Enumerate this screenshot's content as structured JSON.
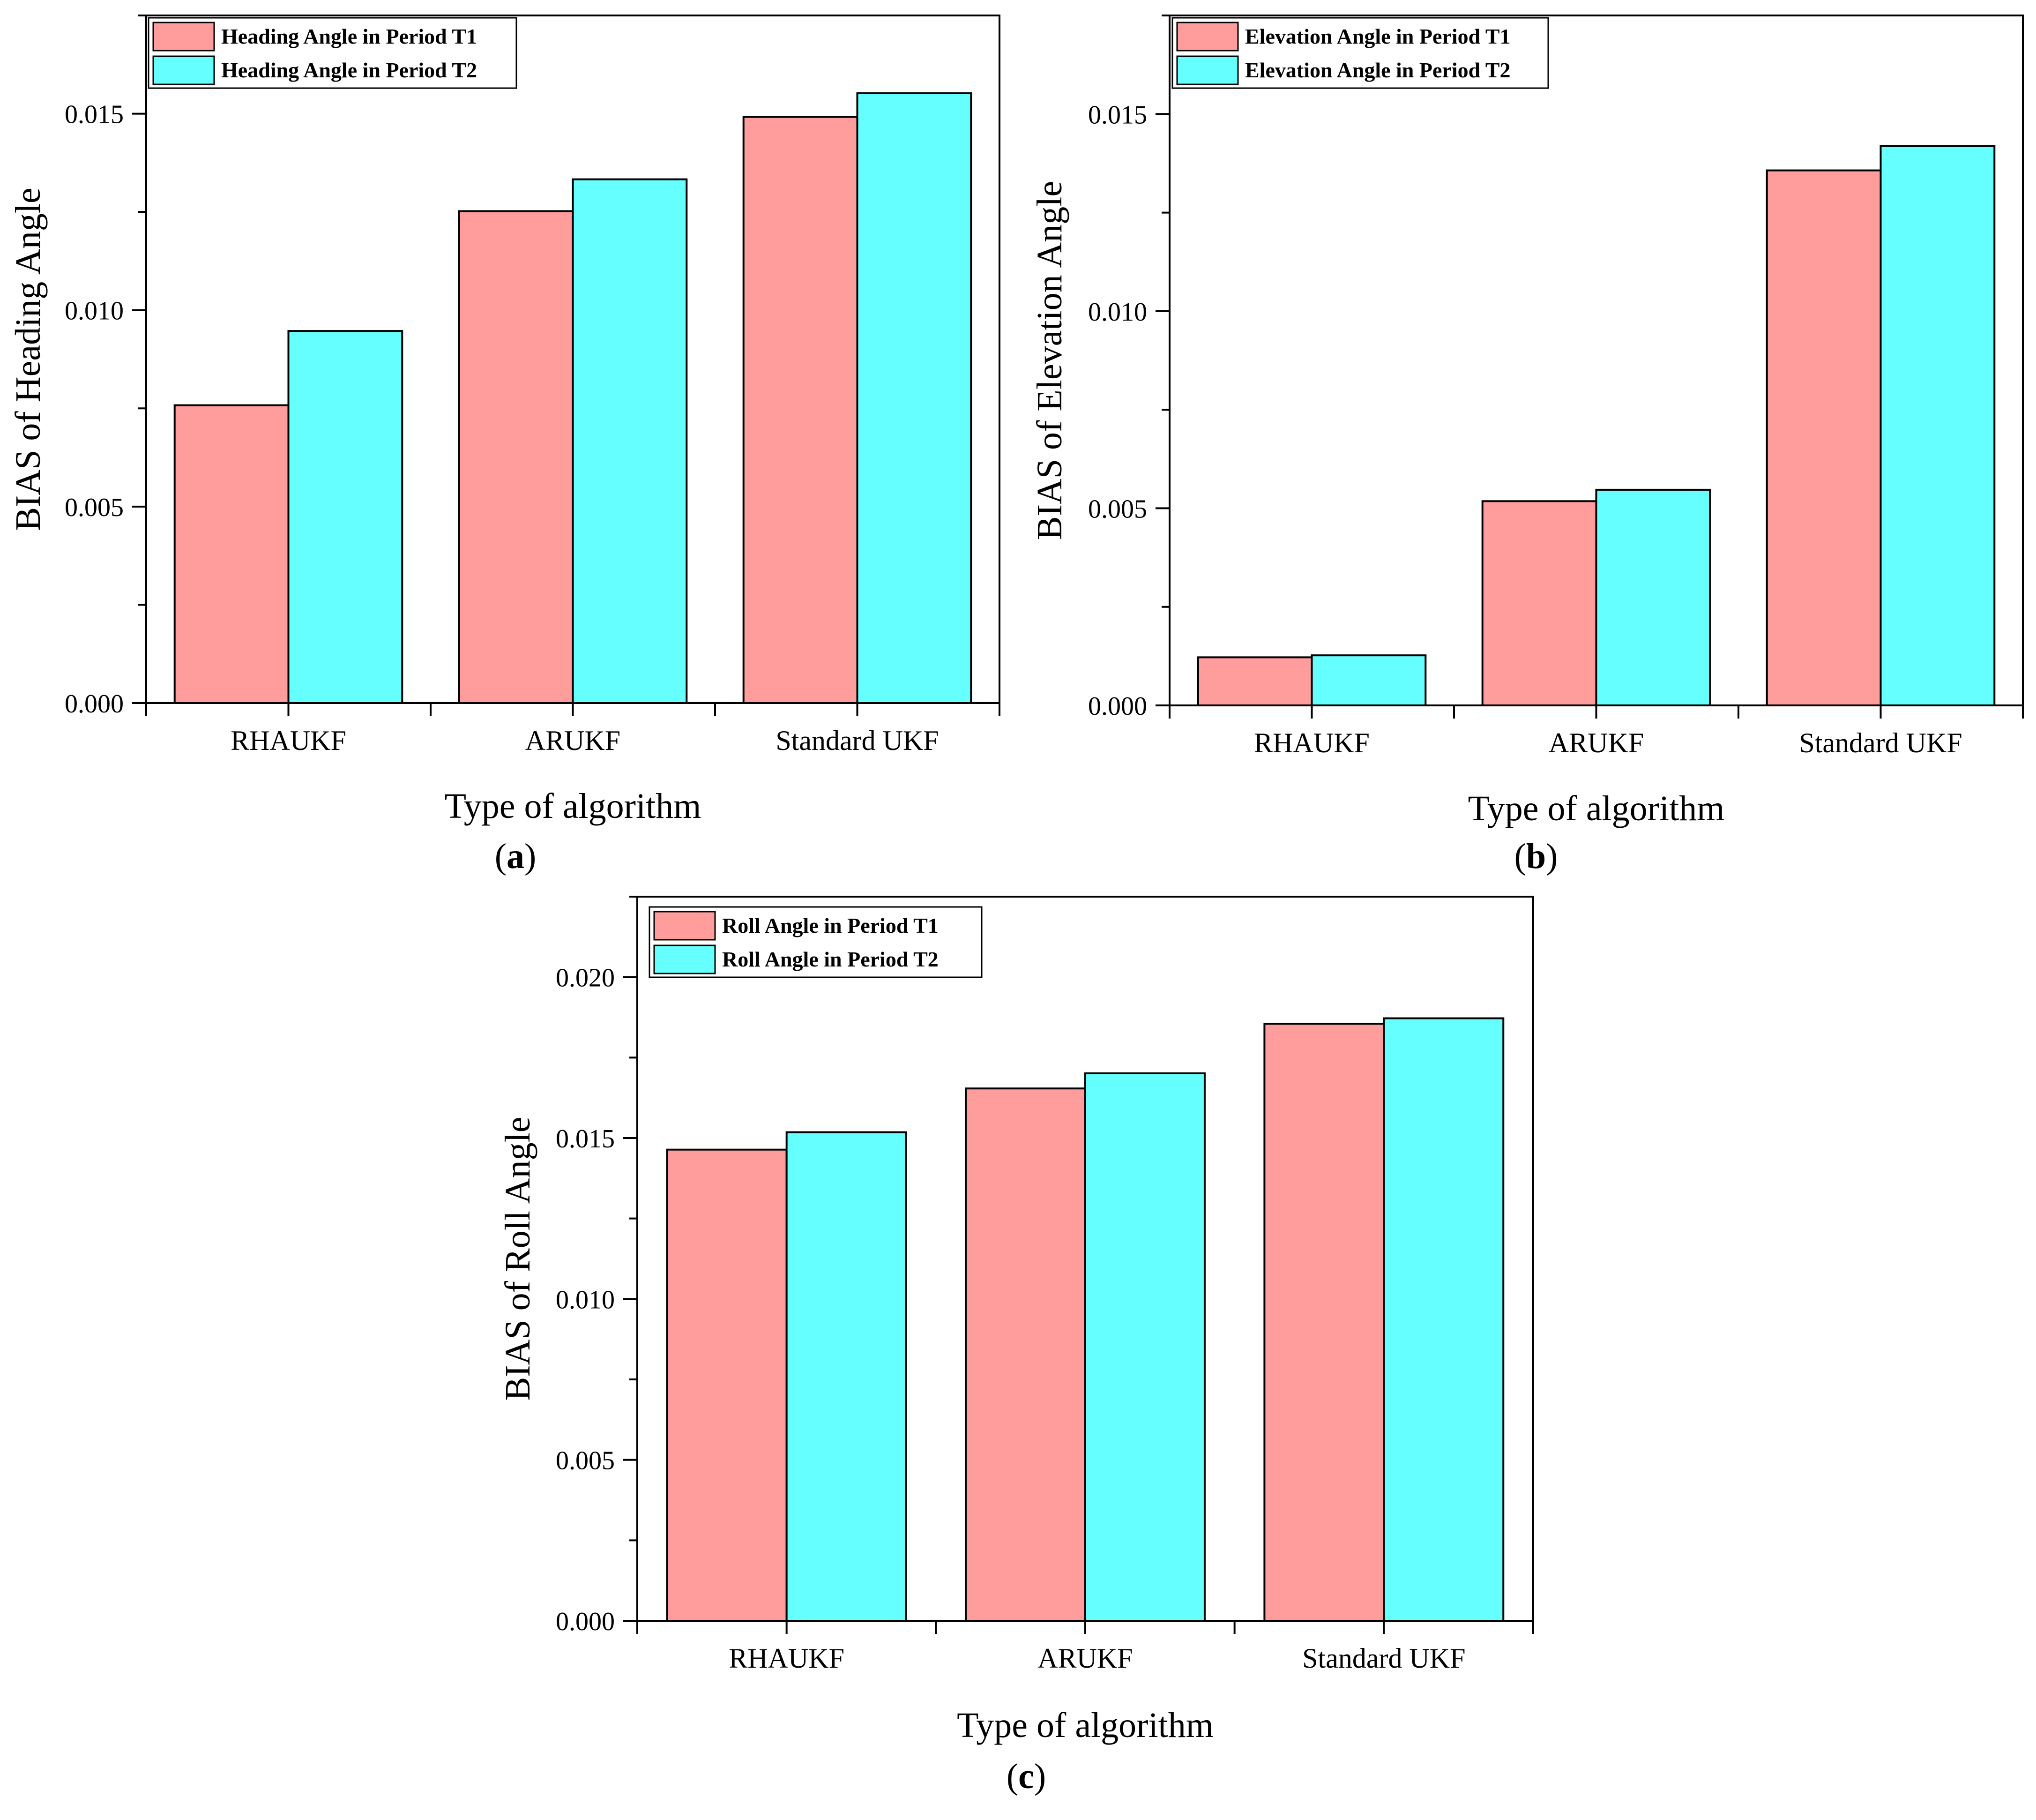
{
  "colors": {
    "t1": "#ff9c9c",
    "t2": "#66ffff",
    "stroke": "#000000"
  },
  "chart_data": [
    {
      "id": "a",
      "type": "bar",
      "panel_label": "a",
      "title": "",
      "xlabel": "Type of algorithm",
      "ylabel": "BIAS of Heading Angle",
      "categories": [
        "RHAUKF",
        "ARUKF",
        "Standard UKF"
      ],
      "series": [
        {
          "name": "Heading Angle in Period T1",
          "values": [
            0.00758,
            0.01252,
            0.01492
          ]
        },
        {
          "name": "Heading Angle in Period T2",
          "values": [
            0.00947,
            0.01333,
            0.01552
          ]
        }
      ],
      "ylim": [
        0,
        0.0175
      ],
      "yticks": [
        0,
        0.005,
        0.01,
        0.015
      ],
      "ytick_labels": [
        "0.000",
        "0.005",
        "0.010",
        "0.015"
      ],
      "legend_position": "top-left",
      "grid": false
    },
    {
      "id": "b",
      "type": "bar",
      "panel_label": "b",
      "title": "",
      "xlabel": "Type of algorithm",
      "ylabel": "BIAS of Elevation Angle",
      "categories": [
        "RHAUKF",
        "ARUKF",
        "Standard UKF"
      ],
      "series": [
        {
          "name": "Elevation Angle in Period T1",
          "values": [
            0.00122,
            0.00518,
            0.01357
          ]
        },
        {
          "name": "Elevation Angle in Period T2",
          "values": [
            0.00127,
            0.00547,
            0.01419
          ]
        }
      ],
      "ylim": [
        0,
        0.0175
      ],
      "yticks": [
        0,
        0.005,
        0.01,
        0.015
      ],
      "ytick_labels": [
        "0.000",
        "0.005",
        "0.010",
        "0.015"
      ],
      "legend_position": "top-left",
      "grid": false
    },
    {
      "id": "c",
      "type": "bar",
      "panel_label": "c",
      "title": "",
      "xlabel": "Type of algorithm",
      "ylabel": "BIAS of Roll Angle",
      "categories": [
        "RHAUKF",
        "ARUKF",
        "Standard UKF"
      ],
      "series": [
        {
          "name": "Roll Angle in Period T1",
          "values": [
            0.01464,
            0.01654,
            0.01855
          ]
        },
        {
          "name": "Roll Angle in Period T2",
          "values": [
            0.01518,
            0.01701,
            0.01872
          ]
        }
      ],
      "ylim": [
        0,
        0.0225
      ],
      "yticks": [
        0,
        0.005,
        0.01,
        0.015,
        0.02
      ],
      "ytick_labels": [
        "0.000",
        "0.005",
        "0.010",
        "0.015",
        "0.020"
      ],
      "legend_position": "top-left",
      "grid": false
    }
  ]
}
